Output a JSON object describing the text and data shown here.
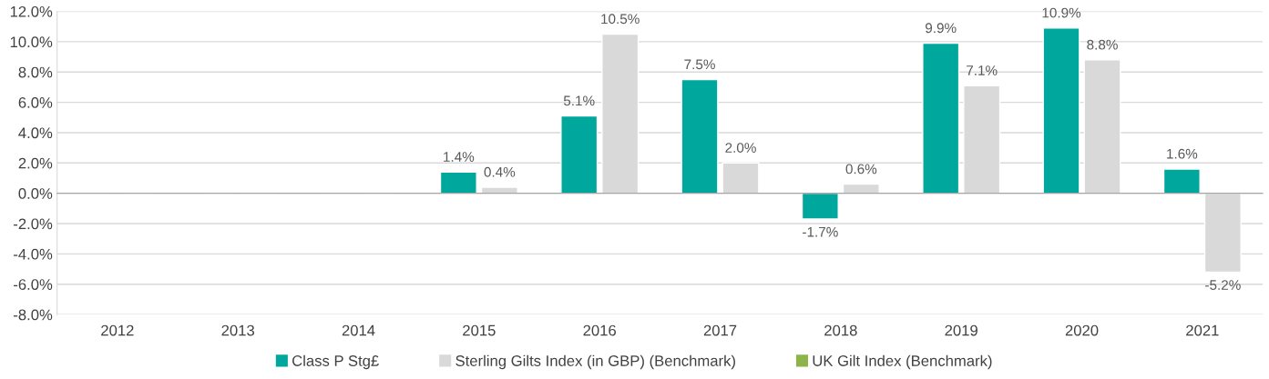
{
  "chart_data": {
    "type": "bar",
    "categories": [
      "2012",
      "2013",
      "2014",
      "2015",
      "2016",
      "2017",
      "2018",
      "2019",
      "2020",
      "2021"
    ],
    "series": [
      {
        "name": "Class P Stg£",
        "color": "#00a79d",
        "values": [
          null,
          null,
          null,
          1.4,
          5.1,
          7.5,
          -1.7,
          9.9,
          10.9,
          1.6
        ],
        "value_labels": [
          null,
          null,
          null,
          "1.4%",
          "5.1%",
          "7.5%",
          "-1.7%",
          "9.9%",
          "10.9%",
          "1.6%"
        ]
      },
      {
        "name": "Sterling Gilts Index (in GBP) (Benchmark)",
        "color": "#d9d9d9",
        "values": [
          null,
          null,
          null,
          0.4,
          10.5,
          2.0,
          0.6,
          7.1,
          8.8,
          -5.2
        ],
        "value_labels": [
          null,
          null,
          null,
          "0.4%",
          "10.5%",
          "2.0%",
          "0.6%",
          "7.1%",
          "8.8%",
          "-5.2%"
        ]
      },
      {
        "name": "UK Gilt Index (Benchmark)",
        "color": "#8db44a",
        "values": [
          null,
          null,
          null,
          null,
          null,
          null,
          null,
          null,
          null,
          null
        ]
      }
    ],
    "ylim": [
      -8,
      12
    ],
    "yticks": [
      {
        "value": -8,
        "label": "-8.0%"
      },
      {
        "value": -6,
        "label": "-6.0%"
      },
      {
        "value": -4,
        "label": "-4.0%"
      },
      {
        "value": -2,
        "label": "-2.0%"
      },
      {
        "value": 0,
        "label": "0.0%"
      },
      {
        "value": 2,
        "label": "2.0%"
      },
      {
        "value": 4,
        "label": "4.0%"
      },
      {
        "value": 6,
        "label": "6.0%"
      },
      {
        "value": 8,
        "label": "8.0%"
      },
      {
        "value": 10,
        "label": "10.0%"
      },
      {
        "value": 12,
        "label": "12.0%"
      }
    ],
    "grid": "y",
    "legend": "bottom"
  }
}
